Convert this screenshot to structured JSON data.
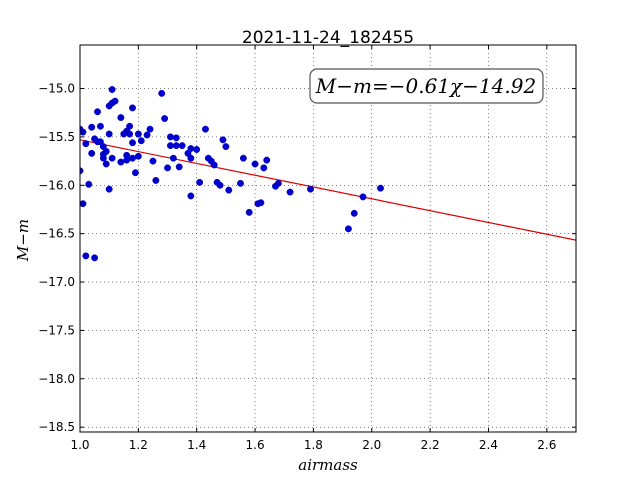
{
  "chart_data": {
    "type": "scatter",
    "title": "2021-11-24_182455",
    "xlabel": "airmass",
    "ylabel": "M−m",
    "xlim": [
      1.0,
      2.7
    ],
    "ylim": [
      -18.55,
      -14.55
    ],
    "y_inverted": true,
    "grid": true,
    "x_ticks": [
      1.0,
      1.2,
      1.4,
      1.6,
      1.8,
      2.0,
      2.2,
      2.4,
      2.6
    ],
    "x_tick_labels": [
      "1.0",
      "1.2",
      "1.4",
      "1.6",
      "1.8",
      "2.0",
      "2.2",
      "2.4",
      "2.6"
    ],
    "y_ticks": [
      -15.0,
      -15.5,
      -16.0,
      -16.5,
      -17.0,
      -17.5,
      -18.0,
      -18.5
    ],
    "y_tick_labels": [
      "−15.0",
      "−15.5",
      "−16.0",
      "−16.5",
      "−17.0",
      "−17.5",
      "−18.0",
      "−18.5"
    ],
    "annotation": "M−m=−0.61χ−14.92",
    "fit": {
      "slope": -0.61,
      "intercept": -14.92,
      "color": "#dd0000"
    },
    "marker_color": "#0000cc",
    "points": [
      [
        1.0,
        -15.85
      ],
      [
        1.0,
        -15.42
      ],
      [
        1.01,
        -15.45
      ],
      [
        1.01,
        -16.19
      ],
      [
        1.02,
        -15.57
      ],
      [
        1.02,
        -16.73
      ],
      [
        1.03,
        -15.99
      ],
      [
        1.04,
        -15.4
      ],
      [
        1.04,
        -15.67
      ],
      [
        1.05,
        -16.75
      ],
      [
        1.05,
        -15.52
      ],
      [
        1.06,
        -15.24
      ],
      [
        1.06,
        -15.55
      ],
      [
        1.07,
        -15.39
      ],
      [
        1.07,
        -15.55
      ],
      [
        1.08,
        -15.6
      ],
      [
        1.08,
        -15.72
      ],
      [
        1.08,
        -15.68
      ],
      [
        1.09,
        -15.78
      ],
      [
        1.09,
        -15.65
      ],
      [
        1.1,
        -15.18
      ],
      [
        1.1,
        -15.47
      ],
      [
        1.1,
        -16.04
      ],
      [
        1.11,
        -15.15
      ],
      [
        1.11,
        -15.01
      ],
      [
        1.11,
        -15.72
      ],
      [
        1.12,
        -15.13
      ],
      [
        1.14,
        -15.3
      ],
      [
        1.14,
        -15.76
      ],
      [
        1.15,
        -15.47
      ],
      [
        1.16,
        -15.69
      ],
      [
        1.16,
        -15.74
      ],
      [
        1.16,
        -15.44
      ],
      [
        1.17,
        -15.39
      ],
      [
        1.17,
        -15.47
      ],
      [
        1.18,
        -15.56
      ],
      [
        1.18,
        -15.2
      ],
      [
        1.18,
        -15.72
      ],
      [
        1.19,
        -15.87
      ],
      [
        1.2,
        -15.47
      ],
      [
        1.2,
        -15.7
      ],
      [
        1.21,
        -15.54
      ],
      [
        1.23,
        -15.48
      ],
      [
        1.24,
        -15.42
      ],
      [
        1.25,
        -15.75
      ],
      [
        1.26,
        -15.95
      ],
      [
        1.28,
        -15.05
      ],
      [
        1.29,
        -15.31
      ],
      [
        1.3,
        -15.82
      ],
      [
        1.31,
        -15.5
      ],
      [
        1.31,
        -15.59
      ],
      [
        1.32,
        -15.72
      ],
      [
        1.33,
        -15.51
      ],
      [
        1.33,
        -15.59
      ],
      [
        1.34,
        -15.81
      ],
      [
        1.35,
        -15.59
      ],
      [
        1.37,
        -15.67
      ],
      [
        1.38,
        -15.62
      ],
      [
        1.38,
        -15.72
      ],
      [
        1.38,
        -16.11
      ],
      [
        1.4,
        -15.63
      ],
      [
        1.41,
        -15.97
      ],
      [
        1.43,
        -15.42
      ],
      [
        1.44,
        -15.72
      ],
      [
        1.45,
        -15.75
      ],
      [
        1.46,
        -15.79
      ],
      [
        1.47,
        -15.97
      ],
      [
        1.48,
        -16.0
      ],
      [
        1.49,
        -15.53
      ],
      [
        1.5,
        -15.6
      ],
      [
        1.51,
        -16.05
      ],
      [
        1.55,
        -15.98
      ],
      [
        1.56,
        -15.72
      ],
      [
        1.58,
        -16.28
      ],
      [
        1.6,
        -15.78
      ],
      [
        1.61,
        -16.19
      ],
      [
        1.62,
        -16.18
      ],
      [
        1.63,
        -15.82
      ],
      [
        1.64,
        -15.74
      ],
      [
        1.67,
        -16.01
      ],
      [
        1.68,
        -15.98
      ],
      [
        1.72,
        -16.07
      ],
      [
        1.79,
        -16.04
      ],
      [
        1.92,
        -16.45
      ],
      [
        1.94,
        -16.29
      ],
      [
        1.97,
        -16.12
      ],
      [
        2.03,
        -16.03
      ]
    ]
  }
}
